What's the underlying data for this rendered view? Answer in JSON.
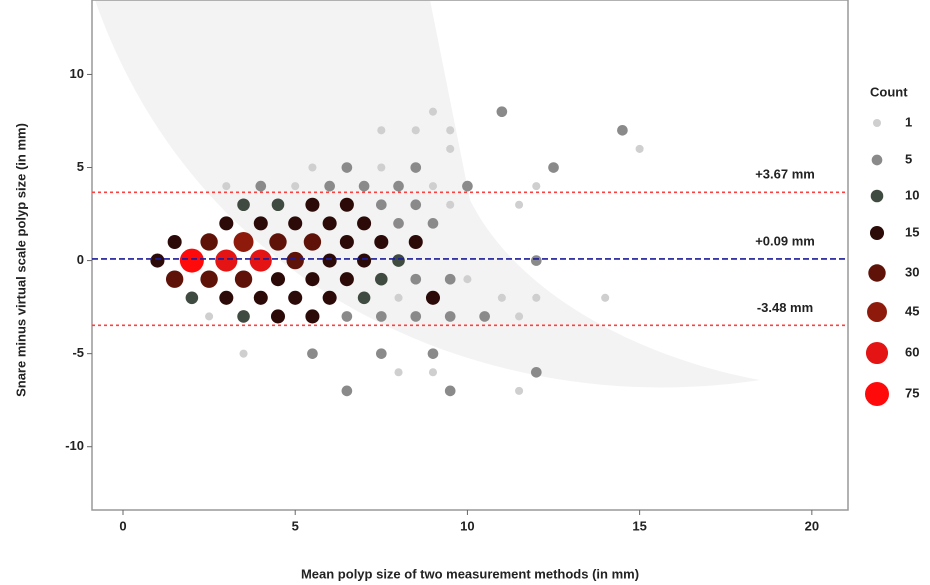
{
  "chart_data": {
    "type": "bubble",
    "x_label": "Mean polyp size of two measurement methods (in mm)",
    "y_label": "Snare minus virtual scale polyp size (in mm)",
    "xlim": [
      -0.9,
      21.05
    ],
    "xticks": [
      0,
      5,
      10,
      15,
      20
    ],
    "ylim": [
      -13.4,
      14
    ],
    "yticks": [
      -10,
      -5,
      0,
      5,
      10
    ],
    "x": [
      1,
      2,
      3,
      4,
      5,
      6,
      7,
      8,
      12,
      1.5,
      2.5,
      3.5,
      4.5,
      5.5,
      6.5,
      7.5,
      8.5,
      1.5,
      2.5,
      3.5,
      4.5,
      5.5,
      6.5,
      7.5,
      8.5,
      9.5,
      10,
      3,
      4,
      5,
      6,
      7,
      8,
      9,
      2,
      3,
      4,
      5,
      6,
      7,
      8,
      9,
      11,
      12,
      14,
      3.5,
      4.5,
      5.5,
      6.5,
      7.5,
      8.5,
      9.5,
      11.5,
      2.5,
      3.5,
      4.5,
      5.5,
      6.5,
      7.5,
      8.5,
      9.5,
      10.5,
      11.5,
      3,
      4,
      5,
      6,
      7,
      8,
      9,
      10,
      12,
      5.5,
      6.5,
      7.5,
      8.5,
      12.5,
      3.5,
      5.5,
      7.5,
      9,
      9.5,
      15,
      7.5,
      8.5,
      9.5,
      14.5,
      9,
      11,
      8,
      9,
      12,
      6.5,
      9.5,
      11.5
    ],
    "values": [
      0,
      0,
      0,
      0,
      0,
      0,
      0,
      0,
      0,
      1,
      1,
      1,
      1,
      1,
      1,
      1,
      1,
      -1,
      -1,
      -1,
      -1,
      -1,
      -1,
      -1,
      -1,
      -1,
      -1,
      2,
      2,
      2,
      2,
      2,
      2,
      2,
      -2,
      -2,
      -2,
      -2,
      -2,
      -2,
      -2,
      -2,
      -2,
      -2,
      -2,
      3,
      3,
      3,
      3,
      3,
      3,
      3,
      3,
      -3,
      -3,
      -3,
      -3,
      -3,
      -3,
      -3,
      -3,
      -3,
      -3,
      4,
      4,
      4,
      4,
      4,
      4,
      4,
      4,
      4,
      5,
      5,
      5,
      5,
      5,
      -5,
      -5,
      -5,
      -5,
      6,
      6,
      7,
      7,
      7,
      7,
      8,
      8,
      -6,
      -6,
      -6,
      -7,
      -7,
      -7
    ],
    "sizes": [
      15,
      75,
      60,
      60,
      30,
      15,
      15,
      10,
      5,
      15,
      30,
      45,
      30,
      30,
      15,
      15,
      15,
      30,
      30,
      30,
      15,
      15,
      15,
      10,
      5,
      5,
      1,
      15,
      15,
      15,
      15,
      15,
      5,
      5,
      10,
      15,
      15,
      15,
      15,
      10,
      1,
      15,
      1,
      1,
      1,
      10,
      10,
      15,
      15,
      5,
      5,
      1,
      1,
      1,
      10,
      15,
      15,
      5,
      5,
      5,
      5,
      5,
      1,
      1,
      5,
      1,
      5,
      5,
      5,
      1,
      5,
      1,
      1,
      5,
      1,
      5,
      5,
      1,
      5,
      5,
      5,
      1,
      1,
      1,
      1,
      1,
      5,
      1,
      5,
      1,
      1,
      5,
      5,
      5,
      1
    ],
    "size_legend_title": "Count",
    "size_legend": [
      {
        "value": 1,
        "color": "#cfcfcf"
      },
      {
        "value": 5,
        "color": "#8a8a8a"
      },
      {
        "value": 10,
        "color": "#3f4a40"
      },
      {
        "value": 15,
        "color": "#2b0a08"
      },
      {
        "value": 30,
        "color": "#5e1208"
      },
      {
        "value": 45,
        "color": "#8e1a0c"
      },
      {
        "value": 60,
        "color": "#e41414"
      },
      {
        "value": 75,
        "color": "#ff0a0a"
      }
    ],
    "reference_lines": [
      {
        "value": 3.67,
        "label": "+3.67 mm",
        "color": "#ff4040",
        "style": "dotted"
      },
      {
        "value": 0.09,
        "label": "+0.09 mm",
        "color": "#1a1a9a",
        "style": "dashed"
      },
      {
        "value": -3.48,
        "label": "-3.48 mm",
        "color": "#ff4040",
        "style": "dotted"
      }
    ]
  }
}
